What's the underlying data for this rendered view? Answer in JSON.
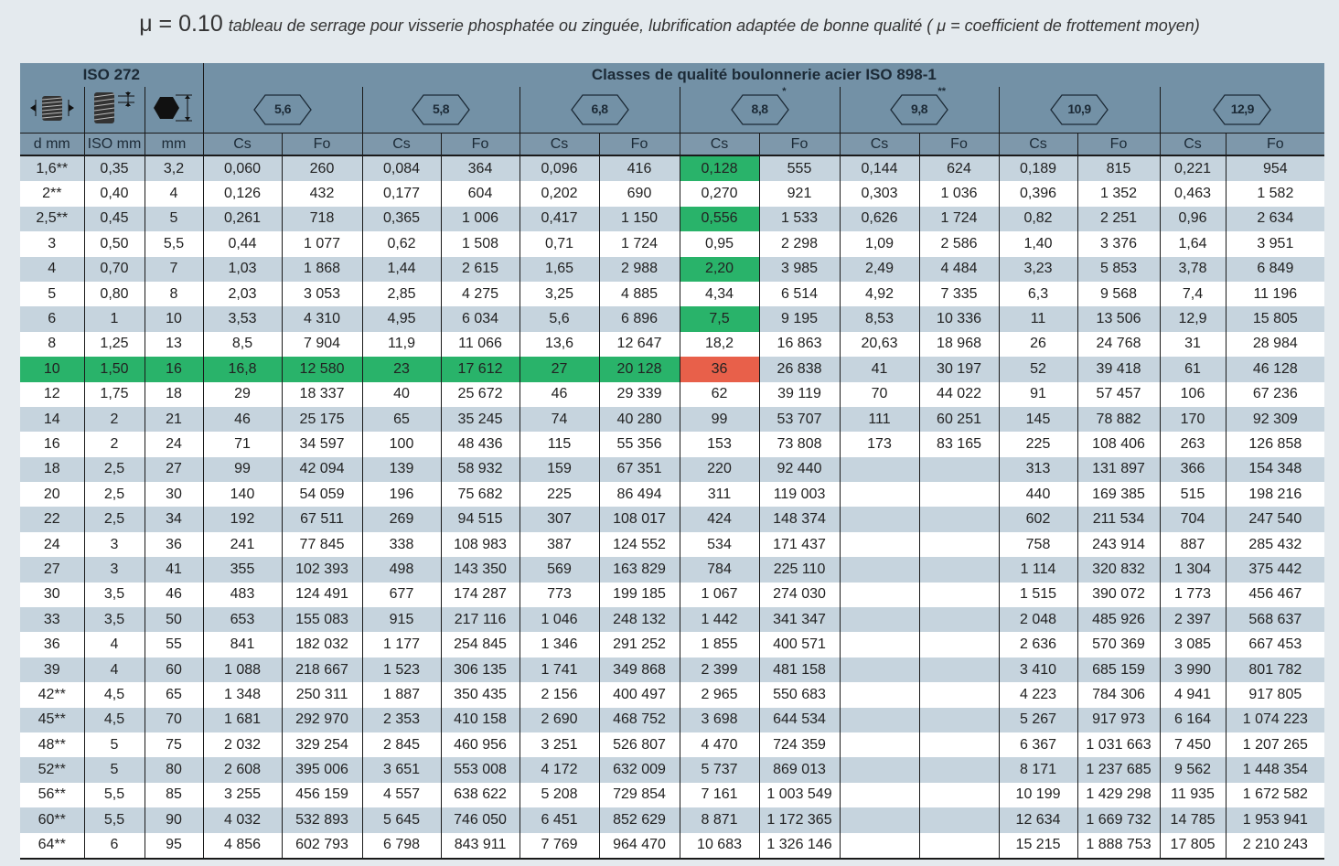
{
  "title": {
    "mu": "μ = 0.10",
    "description": "tableau de serrage pour visserie phosphatée ou zinguée, lubrification adaptée de bonne qualité  ( μ = coefficient de frottement moyen)"
  },
  "header": {
    "iso272": "ISO 272",
    "classes_title": "Classes de qualité boulonnerie acier ISO 898-1",
    "icons": [
      "thread-diameter-icon",
      "thread-pitch-icon",
      "hex-wrench-size-icon"
    ],
    "classes": [
      {
        "label": "5,6",
        "mark": ""
      },
      {
        "label": "5,8",
        "mark": ""
      },
      {
        "label": "6,8",
        "mark": ""
      },
      {
        "label": "8,8",
        "mark": "*"
      },
      {
        "label": "9,8",
        "mark": "**"
      },
      {
        "label": "10,9",
        "mark": ""
      },
      {
        "label": "12,9",
        "mark": ""
      }
    ],
    "columns": [
      "d mm",
      "ISO mm",
      "mm",
      "Cs",
      "Fo",
      "Cs",
      "Fo",
      "Cs",
      "Fo",
      "Cs",
      "Fo",
      "Cs",
      "Fo",
      "Cs",
      "Fo",
      "Cs",
      "Fo"
    ]
  },
  "colors": {
    "header": "#7391a6",
    "row_alt": "#c6d4de",
    "green": "#29b36a",
    "red": "#e8604a"
  },
  "highlights": [
    {
      "row": 0,
      "col": 9,
      "color": "green"
    },
    {
      "row": 2,
      "col": 9,
      "color": "green"
    },
    {
      "row": 4,
      "col": 9,
      "color": "green"
    },
    {
      "row": 6,
      "col": 9,
      "color": "green"
    },
    {
      "row": 8,
      "col": 0,
      "color": "green"
    },
    {
      "row": 8,
      "col": 1,
      "color": "green"
    },
    {
      "row": 8,
      "col": 2,
      "color": "green"
    },
    {
      "row": 8,
      "col": 3,
      "color": "green"
    },
    {
      "row": 8,
      "col": 4,
      "color": "green"
    },
    {
      "row": 8,
      "col": 5,
      "color": "green"
    },
    {
      "row": 8,
      "col": 6,
      "color": "green"
    },
    {
      "row": 8,
      "col": 7,
      "color": "green"
    },
    {
      "row": 8,
      "col": 8,
      "color": "green"
    },
    {
      "row": 8,
      "col": 9,
      "color": "red"
    }
  ],
  "rows": [
    {
      "cells": [
        "1,6**",
        "0,35",
        "3,2",
        "0,060",
        "260",
        "0,084",
        "364",
        "0,096",
        "416",
        "0,128",
        "555",
        "0,144",
        "624",
        "0,189",
        "815",
        "0,221",
        "954"
      ]
    },
    {
      "cells": [
        "2**",
        "0,40",
        "4",
        "0,126",
        "432",
        "0,177",
        "604",
        "0,202",
        "690",
        "0,270",
        "921",
        "0,303",
        "1 036",
        "0,396",
        "1 352",
        "0,463",
        "1 582"
      ]
    },
    {
      "cells": [
        "2,5**",
        "0,45",
        "5",
        "0,261",
        "718",
        "0,365",
        "1 006",
        "0,417",
        "1 150",
        "0,556",
        "1 533",
        "0,626",
        "1 724",
        "0,82",
        "2 251",
        "0,96",
        "2 634"
      ]
    },
    {
      "cells": [
        "3",
        "0,50",
        "5,5",
        "0,44",
        "1 077",
        "0,62",
        "1 508",
        "0,71",
        "1 724",
        "0,95",
        "2 298",
        "1,09",
        "2 586",
        "1,40",
        "3 376",
        "1,64",
        "3 951"
      ]
    },
    {
      "cells": [
        "4",
        "0,70",
        "7",
        "1,03",
        "1 868",
        "1,44",
        "2 615",
        "1,65",
        "2 988",
        "2,20",
        "3 985",
        "2,49",
        "4 484",
        "3,23",
        "5 853",
        "3,78",
        "6 849"
      ]
    },
    {
      "cells": [
        "5",
        "0,80",
        "8",
        "2,03",
        "3 053",
        "2,85",
        "4 275",
        "3,25",
        "4 885",
        "4,34",
        "6 514",
        "4,92",
        "7 335",
        "6,3",
        "9 568",
        "7,4",
        "11 196"
      ]
    },
    {
      "cells": [
        "6",
        "1",
        "10",
        "3,53",
        "4 310",
        "4,95",
        "6 034",
        "5,6",
        "6 896",
        "7,5",
        "9 195",
        "8,53",
        "10 336",
        "11",
        "13 506",
        "12,9",
        "15 805"
      ]
    },
    {
      "cells": [
        "8",
        "1,25",
        "13",
        "8,5",
        "7 904",
        "11,9",
        "11 066",
        "13,6",
        "12 647",
        "18,2",
        "16 863",
        "20,63",
        "18 968",
        "26",
        "24 768",
        "31",
        "28 984"
      ]
    },
    {
      "cells": [
        "10",
        "1,50",
        "16",
        "16,8",
        "12 580",
        "23",
        "17 612",
        "27",
        "20 128",
        "36",
        "26 838",
        "41",
        "30 197",
        "52",
        "39 418",
        "61",
        "46 128"
      ]
    },
    {
      "cells": [
        "12",
        "1,75",
        "18",
        "29",
        "18 337",
        "40",
        "25 672",
        "46",
        "29 339",
        "62",
        "39 119",
        "70",
        "44 022",
        "91",
        "57 457",
        "106",
        "67 236"
      ]
    },
    {
      "cells": [
        "14",
        "2",
        "21",
        "46",
        "25 175",
        "65",
        "35 245",
        "74",
        "40 280",
        "99",
        "53 707",
        "111",
        "60 251",
        "145",
        "78 882",
        "170",
        "92 309"
      ]
    },
    {
      "cells": [
        "16",
        "2",
        "24",
        "71",
        "34 597",
        "100",
        "48 436",
        "115",
        "55 356",
        "153",
        "73 808",
        "173",
        "83 165",
        "225",
        "108 406",
        "263",
        "126 858"
      ]
    },
    {
      "cells": [
        "18",
        "2,5",
        "27",
        "99",
        "42 094",
        "139",
        "58 932",
        "159",
        "67 351",
        "220",
        "92 440",
        "",
        "",
        "313",
        "131 897",
        "366",
        "154 348"
      ]
    },
    {
      "cells": [
        "20",
        "2,5",
        "30",
        "140",
        "54 059",
        "196",
        "75 682",
        "225",
        "86 494",
        "311",
        "119 003",
        "",
        "",
        "440",
        "169 385",
        "515",
        "198 216"
      ]
    },
    {
      "cells": [
        "22",
        "2,5",
        "34",
        "192",
        "67 511",
        "269",
        "94 515",
        "307",
        "108 017",
        "424",
        "148 374",
        "",
        "",
        "602",
        "211 534",
        "704",
        "247 540"
      ]
    },
    {
      "cells": [
        "24",
        "3",
        "36",
        "241",
        "77 845",
        "338",
        "108 983",
        "387",
        "124 552",
        "534",
        "171 437",
        "",
        "",
        "758",
        "243 914",
        "887",
        "285 432"
      ]
    },
    {
      "cells": [
        "27",
        "3",
        "41",
        "355",
        "102 393",
        "498",
        "143 350",
        "569",
        "163 829",
        "784",
        "225 110",
        "",
        "",
        "1 114",
        "320 832",
        "1 304",
        "375 442"
      ]
    },
    {
      "cells": [
        "30",
        "3,5",
        "46",
        "483",
        "124 491",
        "677",
        "174 287",
        "773",
        "199 185",
        "1 067",
        "274 030",
        "",
        "",
        "1 515",
        "390 072",
        "1 773",
        "456 467"
      ]
    },
    {
      "cells": [
        "33",
        "3,5",
        "50",
        "653",
        "155 083",
        "915",
        "217 116",
        "1 046",
        "248 132",
        "1 442",
        "341 347",
        "",
        "",
        "2 048",
        "485 926",
        "2 397",
        "568 637"
      ]
    },
    {
      "cells": [
        "36",
        "4",
        "55",
        "841",
        "182 032",
        "1 177",
        "254 845",
        "1 346",
        "291 252",
        "1 855",
        "400 571",
        "",
        "",
        "2 636",
        "570 369",
        "3 085",
        "667 453"
      ]
    },
    {
      "cells": [
        "39",
        "4",
        "60",
        "1 088",
        "218 667",
        "1 523",
        "306 135",
        "1 741",
        "349 868",
        "2 399",
        "481 158",
        "",
        "",
        "3 410",
        "685 159",
        "3 990",
        "801 782"
      ]
    },
    {
      "cells": [
        "42**",
        "4,5",
        "65",
        "1 348",
        "250 311",
        "1 887",
        "350 435",
        "2 156",
        "400 497",
        "2 965",
        "550 683",
        "",
        "",
        "4 223",
        "784 306",
        "4 941",
        "917 805"
      ]
    },
    {
      "cells": [
        "45**",
        "4,5",
        "70",
        "1 681",
        "292 970",
        "2 353",
        "410 158",
        "2 690",
        "468 752",
        "3 698",
        "644 534",
        "",
        "",
        "5 267",
        "917 973",
        "6 164",
        "1 074 223"
      ]
    },
    {
      "cells": [
        "48**",
        "5",
        "75",
        "2 032",
        "329 254",
        "2 845",
        "460 956",
        "3 251",
        "526 807",
        "4 470",
        "724 359",
        "",
        "",
        "6 367",
        "1 031 663",
        "7 450",
        "1 207 265"
      ]
    },
    {
      "cells": [
        "52**",
        "5",
        "80",
        "2 608",
        "395 006",
        "3 651",
        "553 008",
        "4 172",
        "632 009",
        "5 737",
        "869 013",
        "",
        "",
        "8 171",
        "1 237 685",
        "9 562",
        "1 448 354"
      ]
    },
    {
      "cells": [
        "56**",
        "5,5",
        "85",
        "3 255",
        "456 159",
        "4 557",
        "638 622",
        "5 208",
        "729 854",
        "7 161",
        "1 003 549",
        "",
        "",
        "10 199",
        "1 429 298",
        "11 935",
        "1 672 582"
      ]
    },
    {
      "cells": [
        "60**",
        "5,5",
        "90",
        "4 032",
        "532 893",
        "5 645",
        "746 050",
        "6 451",
        "852 629",
        "8 871",
        "1 172 365",
        "",
        "",
        "12 634",
        "1 669 732",
        "14 785",
        "1 953 941"
      ]
    },
    {
      "cells": [
        "64**",
        "6",
        "95",
        "4 856",
        "602 793",
        "6 798",
        "843 911",
        "7 769",
        "964 470",
        "10 683",
        "1 326 146",
        "",
        "",
        "15 215",
        "1 888 753",
        "17 805",
        "2 210 243"
      ]
    }
  ]
}
